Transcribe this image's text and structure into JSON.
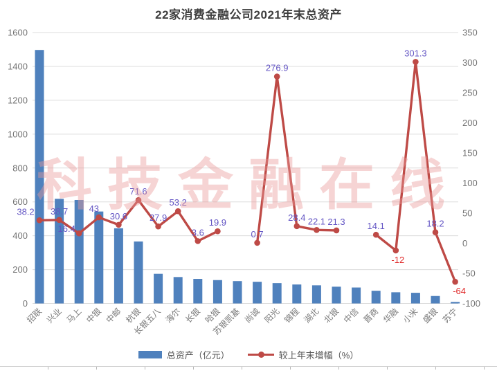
{
  "title": "22家消费金融公司2021年末总资产",
  "watermark": "科技金融在线",
  "legend": [
    {
      "label": "总资产（亿元）",
      "type": "bar"
    },
    {
      "label": "较上年末增幅（%）",
      "type": "line"
    }
  ],
  "colors": {
    "bar": "#4f81bd",
    "line": "#be4a46",
    "label_positive": "#6355c4",
    "label_negative": "#e02b2b",
    "axis_text": "#737373",
    "gridline": "#dcdcdc",
    "title_text": "#3f3f3f",
    "watermark": "#ea9a9a"
  },
  "chart_data": {
    "type": "bar",
    "combo": "bar+line, dual y-axes",
    "title": "22家消费金融公司2021年末总资产",
    "categories": [
      "招联",
      "兴业",
      "马上",
      "中银",
      "中邮",
      "杭银",
      "长银五八",
      "海尔",
      "长银",
      "哈银",
      "苏银凯基",
      "尚诚",
      "阳光",
      "锦程",
      "湖北",
      "北银",
      "中信",
      "晋商",
      "华融",
      "小米",
      "盛银",
      "苏宁"
    ],
    "series": [
      {
        "name": "总资产（亿元）",
        "type": "bar",
        "axis": "left",
        "values": [
          1497,
          618,
          611,
          543,
          444,
          366,
          175,
          156,
          145,
          138,
          132,
          128,
          120,
          112,
          107,
          99,
          94,
          75,
          66,
          63,
          44,
          9
        ]
      },
      {
        "name": "较上年末增幅（%）",
        "type": "line",
        "axis": "right",
        "values": [
          38.2,
          38.7,
          16.4,
          43,
          30.6,
          71.6,
          27.9,
          53.2,
          3.6,
          19.9,
          null,
          0.7,
          276.9,
          28.4,
          22.1,
          21.3,
          null,
          14.1,
          -12,
          301.3,
          18.2,
          -64
        ],
        "labels": [
          "38.2",
          "38.7",
          "16.4",
          "43",
          "30.6",
          "71.6",
          "27.9",
          "53.2",
          "3.6",
          "19.9",
          "",
          "0.7",
          "276.9",
          "28.4",
          "22.1",
          "21.3",
          "",
          "14.1",
          "-12",
          "301.3",
          "18.2",
          "-64"
        ]
      }
    ],
    "left_axis": {
      "min": 0,
      "max": 1600,
      "step": 200,
      "ticks": [
        "0",
        "200",
        "400",
        "600",
        "800",
        "1000",
        "1200",
        "1400",
        "1600"
      ]
    },
    "right_axis": {
      "min": -100,
      "max": 350,
      "step": 50,
      "ticks": [
        "-100",
        "-50",
        "0",
        "50",
        "100",
        "150",
        "200",
        "250",
        "300",
        "350"
      ]
    },
    "grid": true,
    "legend_position": "bottom"
  }
}
